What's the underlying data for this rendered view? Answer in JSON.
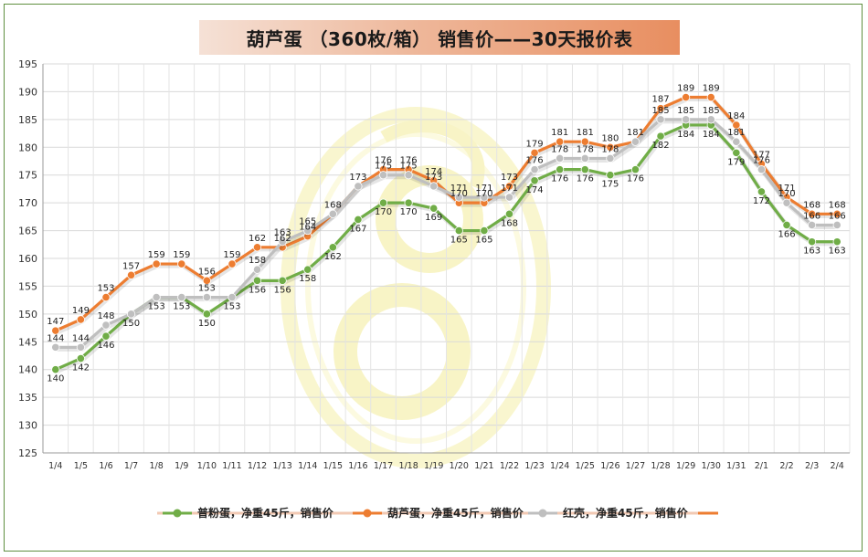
{
  "title": "葫芦蛋 （360枚/箱） 销售价——30天报价表",
  "chart_data": {
    "type": "line",
    "ylim": [
      125,
      195
    ],
    "ystep": 5,
    "grid": true,
    "legend_position": "bottom",
    "categories": [
      "1/4",
      "1/5",
      "1/6",
      "1/7",
      "1/8",
      "1/9",
      "1/10",
      "1/11",
      "1/12",
      "1/13",
      "1/14",
      "1/15",
      "1/16",
      "1/17",
      "1/18",
      "1/19",
      "1/20",
      "1/21",
      "1/22",
      "1/23",
      "1/24",
      "1/25",
      "1/26",
      "1/27",
      "1/28",
      "1/29",
      "1/30",
      "1/31",
      "2/1",
      "2/2",
      "2/3",
      "2/4"
    ],
    "series": [
      {
        "name": "普粉蛋，净重45斤，销售价",
        "color": "#70ad47",
        "values": [
          140,
          142,
          146,
          150,
          153,
          153,
          150,
          153,
          156,
          156,
          158,
          162,
          167,
          170,
          170,
          169,
          165,
          165,
          168,
          174,
          176,
          176,
          175,
          176,
          182,
          184,
          184,
          179,
          172,
          166,
          163,
          163
        ],
        "labels": [
          "140",
          "142",
          "146",
          "150",
          "153",
          "153",
          "150",
          "153",
          "156",
          "156",
          "158",
          "162",
          "167",
          "170",
          "170",
          "169",
          "165",
          "165",
          "168",
          "174",
          "176",
          "176",
          "175",
          "176",
          "182",
          "184",
          "184",
          "179",
          "172",
          "166",
          "163",
          "163"
        ]
      },
      {
        "name": "葫芦蛋，净重45斤，销售价",
        "color": "#ed7d31",
        "values": [
          147,
          149,
          153,
          157,
          159,
          159,
          156,
          159,
          162,
          162,
          164,
          168,
          173,
          176,
          176,
          174,
          170,
          170,
          173,
          179,
          181,
          181,
          180,
          181,
          187,
          189,
          189,
          184,
          177,
          171,
          168,
          168
        ],
        "labels": [
          "147",
          "149",
          "153",
          "157",
          "159",
          "159",
          "156",
          "159",
          "162",
          "162",
          "164",
          "",
          "",
          "176",
          "176",
          "174",
          "170",
          "170",
          "173",
          "179",
          "181",
          "181",
          "180",
          "",
          "187",
          "189",
          "189",
          "184",
          "177",
          "171",
          "168",
          "168"
        ]
      },
      {
        "name": "红壳，净重45斤，销售价",
        "color": "#bfbfbf",
        "values": [
          144,
          144,
          148,
          150,
          153,
          153,
          153,
          153,
          158,
          163,
          165,
          168,
          173,
          175,
          175,
          173,
          171,
          171,
          171,
          176,
          178,
          178,
          178,
          181,
          185,
          185,
          185,
          181,
          176,
          170,
          166,
          166
        ],
        "labels": [
          "144",
          "144",
          "148",
          "",
          "",
          "",
          "153",
          "",
          "158",
          "163",
          "165",
          "168",
          "173",
          "175",
          "175",
          "173",
          "171",
          "171",
          "171",
          "176",
          "178",
          "178",
          "178",
          "181",
          "185",
          "185",
          "185",
          "181",
          "176",
          "170",
          "166",
          "166"
        ]
      }
    ]
  }
}
